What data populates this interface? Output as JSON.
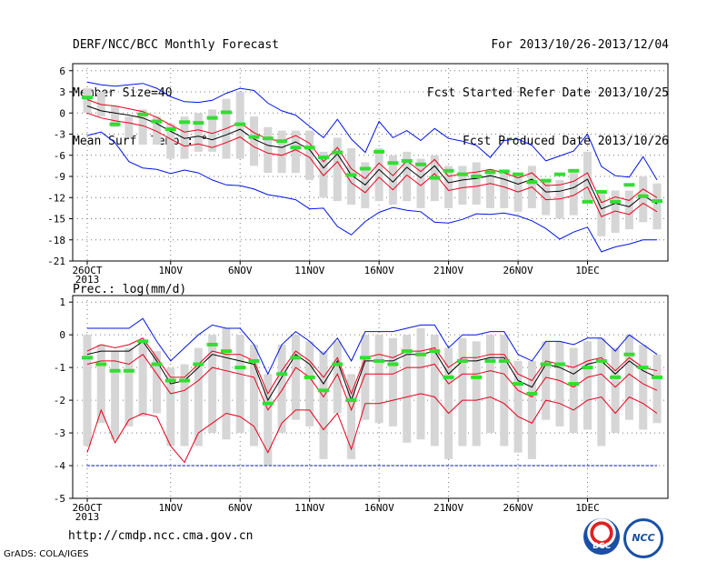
{
  "header": {
    "left": [
      "DERF/NCC/BCC Monthly Forecast",
      "Member Size=40",
      "Mean Surf. Temp.: °C"
    ],
    "right": [
      "For 2013/10/26-2013/12/04",
      "Fcst Started Refer Date 2013/10/25",
      "Fcst Produced Date 2013/10/26"
    ]
  },
  "footer": {
    "url": "http://cmdp.ncc.cma.gov.cn",
    "grads": "GrADS: COLA/IGES"
  },
  "logos": {
    "bcc": "BCC",
    "ncc": "NCC"
  },
  "colors": {
    "bar": "#d6d6d6",
    "mean": "#000000",
    "spread": "#e8001c",
    "envelope": "#0014e6",
    "marker": "#33dd33",
    "grid": "#777777"
  },
  "chart_data": [
    {
      "type": "line",
      "title": "Mean Surf. Temp.: °C",
      "x_tick_labels": [
        "26OCT",
        "1NOV",
        "6NOV",
        "11NOV",
        "16NOV",
        "21NOV",
        "26NOV",
        "1DEC"
      ],
      "x_tick_index": [
        0,
        6,
        11,
        16,
        21,
        26,
        31,
        36
      ],
      "year_label": "2013",
      "ylim": [
        -21,
        7
      ],
      "yticks": [
        6,
        3,
        0,
        -3,
        -6,
        -9,
        -12,
        -15,
        -18,
        -21
      ],
      "grid": true,
      "series": [
        {
          "role": "ensemble-mean",
          "values": [
            1.0,
            0.3,
            0.0,
            -0.3,
            -0.7,
            -1.5,
            -2.6,
            -3.6,
            -3.3,
            -3.8,
            -3.1,
            -2.3,
            -3.7,
            -4.6,
            -4.9,
            -4.1,
            -5.2,
            -7.8,
            -5.8,
            -8.8,
            -10.2,
            -8.0,
            -9.8,
            -7.7,
            -9.2,
            -7.5,
            -9.9,
            -9.5,
            -9.3,
            -8.9,
            -9.4,
            -10.1,
            -9.4,
            -11.2,
            -11.1,
            -10.6,
            -9.4,
            -13.6,
            -12.8,
            -13.3,
            -11.7,
            -12.9
          ]
        },
        {
          "role": "upper-spread",
          "values": [
            1.9,
            1.2,
            1.0,
            0.6,
            0.2,
            -0.6,
            -1.7,
            -2.7,
            -2.4,
            -2.9,
            -2.2,
            -1.4,
            -2.8,
            -3.7,
            -4.0,
            -3.2,
            -4.3,
            -6.9,
            -4.9,
            -7.9,
            -9.3,
            -7.1,
            -8.9,
            -6.8,
            -8.3,
            -6.6,
            -9.0,
            -8.6,
            -8.4,
            -8.0,
            -8.5,
            -9.2,
            -8.5,
            -10.3,
            -10.2,
            -9.7,
            -8.5,
            -12.7,
            -11.9,
            -12.4,
            -10.8,
            -12.0
          ]
        },
        {
          "role": "lower-spread",
          "values": [
            0.0,
            -0.7,
            -1.1,
            -1.4,
            -1.8,
            -2.6,
            -3.7,
            -4.7,
            -4.4,
            -4.9,
            -4.2,
            -3.4,
            -4.8,
            -5.7,
            -6.0,
            -5.2,
            -6.3,
            -8.9,
            -6.9,
            -9.9,
            -11.3,
            -9.1,
            -10.9,
            -8.8,
            -10.3,
            -8.6,
            -11.0,
            -10.6,
            -10.4,
            -10.0,
            -10.5,
            -11.2,
            -10.5,
            -12.3,
            -12.2,
            -11.7,
            -10.5,
            -14.7,
            -13.9,
            -14.4,
            -12.8,
            -14.0
          ]
        },
        {
          "role": "max-envelope",
          "values": [
            4.4,
            4.0,
            3.8,
            4.0,
            4.2,
            3.5,
            2.3,
            1.6,
            1.5,
            1.8,
            2.8,
            3.5,
            3.2,
            1.4,
            0.3,
            -0.3,
            -1.9,
            -3.5,
            -0.9,
            -3.7,
            -5.6,
            -1.2,
            -3.5,
            -2.5,
            -3.9,
            -2.2,
            -3.6,
            -4.0,
            -4.6,
            -6.3,
            -3.9,
            -3.7,
            -4.6,
            -6.8,
            -6.1,
            -5.4,
            -3.0,
            -7.6,
            -8.9,
            -9.1,
            -6.2,
            -9.5
          ]
        },
        {
          "role": "min-envelope",
          "values": [
            -3.2,
            -2.7,
            -4.2,
            -6.9,
            -7.8,
            -8.0,
            -8.6,
            -8.1,
            -8.5,
            -9.5,
            -10.2,
            -10.3,
            -10.8,
            -11.6,
            -11.9,
            -12.3,
            -13.6,
            -13.5,
            -16.1,
            -17.3,
            -15.4,
            -14.1,
            -13.4,
            -13.8,
            -14.0,
            -15.5,
            -15.6,
            -15.1,
            -14.3,
            -14.4,
            -14.2,
            -14.6,
            -15.3,
            -16.4,
            -17.9,
            -16.9,
            -16.2,
            -19.7,
            -19.0,
            -18.6,
            -18.0,
            -18.0
          ]
        }
      ],
      "markers": [
        2.2,
        null,
        -1.6,
        null,
        -0.2,
        -1.2,
        -2.3,
        -1.3,
        -1.4,
        -0.7,
        0.1,
        -1.6,
        -3.4,
        -3.6,
        -4.0,
        -4.9,
        -4.9,
        -6.3,
        -5.6,
        -8.8,
        -7.9,
        -5.5,
        -7.1,
        -6.8,
        -7.3,
        -9.2,
        -8.2,
        -8.7,
        -9.0,
        -8.4,
        -8.3,
        -8.7,
        -9.8,
        -9.6,
        -8.7,
        -8.2,
        -12.6,
        -11.2,
        -12.6,
        -10.2,
        -11.8,
        -12.5
      ],
      "bars": [
        [
          0.0,
          3.5
        ],
        [
          -0.5,
          3.0
        ],
        [
          -2.0,
          1.0
        ],
        [
          -3.5,
          -0.5
        ],
        [
          -4.5,
          0.5
        ],
        [
          -4.5,
          -0.5
        ],
        [
          -6.5,
          -1.5
        ],
        [
          -6.5,
          -0.5
        ],
        [
          -5.5,
          0.0
        ],
        [
          -5.5,
          0.5
        ],
        [
          -6.5,
          2.0
        ],
        [
          -6.5,
          3.0
        ],
        [
          -7.5,
          -0.5
        ],
        [
          -8.5,
          -2.0
        ],
        [
          -8.5,
          -2.5
        ],
        [
          -8.5,
          -2.5
        ],
        [
          -9.5,
          -2.5
        ],
        [
          -12.0,
          -5.5
        ],
        [
          -12.5,
          -3.5
        ],
        [
          -13.0,
          -5.0
        ],
        [
          -13.5,
          -7.0
        ],
        [
          -12.5,
          -5.0
        ],
        [
          -13.0,
          -6.0
        ],
        [
          -12.5,
          -5.5
        ],
        [
          -13.5,
          -6.5
        ],
        [
          -12.5,
          -6.0
        ],
        [
          -13.5,
          -7.5
        ],
        [
          -13.0,
          -7.5
        ],
        [
          -13.0,
          -7.0
        ],
        [
          -13.5,
          -8.0
        ],
        [
          -13.5,
          -8.0
        ],
        [
          -14.0,
          -8.5
        ],
        [
          -13.5,
          -7.5
        ],
        [
          -14.5,
          -9.5
        ],
        [
          -15.0,
          -9.5
        ],
        [
          -14.5,
          -8.5
        ],
        [
          -12.5,
          -5.5
        ],
        [
          -17.5,
          -11.5
        ],
        [
          -17.0,
          -11.0
        ],
        [
          -16.5,
          -11.0
        ],
        [
          -15.5,
          -9.0
        ],
        [
          -16.5,
          -10.0
        ]
      ]
    },
    {
      "type": "line",
      "title": "Prec.: log(mm/d)",
      "x_tick_labels": [
        "26OCT",
        "1NOV",
        "6NOV",
        "11NOV",
        "16NOV",
        "21NOV",
        "26NOV",
        "1DEC"
      ],
      "x_tick_index": [
        0,
        6,
        11,
        16,
        21,
        26,
        31,
        36
      ],
      "year_label": "2013",
      "ylim": [
        -5,
        1.2
      ],
      "yticks": [
        1,
        0,
        -1,
        -2,
        -3,
        -4,
        -5
      ],
      "grid": true,
      "series": [
        {
          "role": "ensemble-mean",
          "values": [
            -0.6,
            -0.5,
            -0.5,
            -0.5,
            -0.2,
            -0.8,
            -1.5,
            -1.4,
            -1.0,
            -0.6,
            -0.7,
            -0.8,
            -0.9,
            -2.0,
            -1.3,
            -0.6,
            -0.9,
            -1.5,
            -0.8,
            -2.0,
            -0.8,
            -0.8,
            -0.8,
            -0.6,
            -0.6,
            -0.5,
            -1.2,
            -0.8,
            -0.8,
            -0.7,
            -0.7,
            -1.4,
            -1.6,
            -0.9,
            -1.0,
            -1.2,
            -0.9,
            -0.8,
            -1.2,
            -0.8,
            -1.1,
            -1.3
          ]
        },
        {
          "role": "upper-spread",
          "values": [
            -0.5,
            -0.3,
            -0.4,
            -0.3,
            -0.1,
            -0.7,
            -1.3,
            -1.3,
            -0.9,
            -0.5,
            -0.6,
            -0.6,
            -0.8,
            -1.8,
            -1.1,
            -0.5,
            -0.8,
            -1.3,
            -0.7,
            -1.8,
            -0.7,
            -0.6,
            -0.7,
            -0.5,
            -0.5,
            -0.4,
            -1.0,
            -0.7,
            -0.7,
            -0.6,
            -0.6,
            -1.2,
            -1.4,
            -0.8,
            -0.9,
            -1.0,
            -0.8,
            -0.7,
            -1.1,
            -0.7,
            -1.0,
            -1.1
          ]
        },
        {
          "role": "lower-spread",
          "values": [
            -0.9,
            -0.8,
            -0.8,
            -0.9,
            -0.6,
            -1.2,
            -1.8,
            -1.7,
            -1.4,
            -1.0,
            -1.1,
            -1.2,
            -1.3,
            -2.3,
            -1.7,
            -1.0,
            -1.3,
            -1.9,
            -1.2,
            -2.3,
            -1.2,
            -1.2,
            -1.2,
            -1.0,
            -1.0,
            -0.9,
            -1.5,
            -1.2,
            -1.2,
            -1.1,
            -1.2,
            -1.7,
            -1.9,
            -1.3,
            -1.4,
            -1.6,
            -1.3,
            -1.2,
            -1.6,
            -1.2,
            -1.5,
            -1.7
          ]
        },
        {
          "role": "lower-band",
          "values": [
            -3.6,
            -2.3,
            -3.3,
            -2.6,
            -2.4,
            -2.5,
            -3.4,
            -3.9,
            -3.0,
            -2.7,
            -2.4,
            -2.5,
            -2.8,
            -3.6,
            -2.7,
            -2.3,
            -2.3,
            -2.9,
            -2.4,
            -3.5,
            -2.1,
            -2.1,
            -2.0,
            -1.9,
            -1.8,
            -1.9,
            -2.4,
            -2.0,
            -2.0,
            -1.9,
            -2.1,
            -2.5,
            -2.7,
            -2.0,
            -2.1,
            -2.3,
            -2.0,
            -1.9,
            -2.4,
            -1.9,
            -2.1,
            -2.4
          ]
        },
        {
          "role": "max-envelope",
          "values": [
            0.2,
            0.2,
            0.2,
            0.2,
            0.5,
            -0.2,
            -0.8,
            -0.4,
            0.0,
            0.3,
            0.2,
            0.2,
            -0.3,
            -1.2,
            -0.3,
            0.1,
            -0.2,
            -0.6,
            -0.1,
            -0.8,
            0.1,
            0.1,
            0.1,
            0.2,
            0.3,
            0.3,
            -0.4,
            0.0,
            0.0,
            0.1,
            0.1,
            -0.6,
            -0.8,
            -0.2,
            -0.2,
            -0.3,
            -0.1,
            -0.1,
            -0.5,
            0.0,
            -0.3,
            -0.6
          ]
        },
        {
          "role": "min-envelope",
          "values": [
            -4.0,
            -4.0,
            -4.0,
            -4.0,
            -4.0,
            -4.0,
            -4.0,
            -4.0,
            -4.0,
            -4.0,
            -4.0,
            -4.0,
            -4.0,
            -4.0,
            -4.0,
            -4.0,
            -4.0,
            -4.0,
            -4.0,
            -4.0,
            -4.0,
            -4.0,
            -4.0,
            -4.0,
            -4.0,
            -4.0,
            -4.0,
            -4.0,
            -4.0,
            -4.0,
            -4.0,
            -4.0,
            -4.0,
            -4.0,
            -4.0,
            -4.0,
            -4.0,
            -4.0,
            -4.0,
            -4.0,
            -4.0,
            -4.0
          ]
        }
      ],
      "markers": [
        -0.7,
        -0.9,
        -1.1,
        -1.1,
        -0.2,
        -0.9,
        -1.4,
        -1.4,
        -0.9,
        -0.3,
        -0.5,
        -1.0,
        -0.8,
        -2.1,
        -1.2,
        -0.7,
        -1.3,
        -1.7,
        -0.9,
        -2.0,
        -0.7,
        -0.8,
        -0.9,
        -0.5,
        -0.6,
        -0.5,
        -1.3,
        -0.8,
        -1.3,
        -0.8,
        -0.8,
        -1.5,
        -1.8,
        -0.9,
        -0.9,
        -1.5,
        -1.0,
        -0.8,
        -1.3,
        -0.6,
        -1.0,
        -1.3
      ],
      "bars": [
        [
          -3.4,
          0.0
        ],
        [
          -2.7,
          -0.3
        ],
        [
          -3.2,
          -0.5
        ],
        [
          -2.8,
          -0.4
        ],
        [
          -2.5,
          -0.2
        ],
        [
          -2.4,
          -0.5
        ],
        [
          -3.4,
          -1.0
        ],
        [
          -3.4,
          -0.9
        ],
        [
          -3.4,
          -0.4
        ],
        [
          -3.0,
          0.0
        ],
        [
          -3.2,
          0.2
        ],
        [
          -3.0,
          0.0
        ],
        [
          -3.4,
          -0.3
        ],
        [
          -4.0,
          -1.2
        ],
        [
          -3.0,
          -0.3
        ],
        [
          -2.6,
          0.0
        ],
        [
          -2.8,
          -0.2
        ],
        [
          -3.8,
          -0.5
        ],
        [
          -2.4,
          -0.2
        ],
        [
          -3.8,
          -1.2
        ],
        [
          -2.6,
          0.0
        ],
        [
          -2.7,
          0.0
        ],
        [
          -2.8,
          -0.1
        ],
        [
          -3.3,
          0.0
        ],
        [
          -3.2,
          0.2
        ],
        [
          -3.4,
          0.0
        ],
        [
          -3.8,
          -0.4
        ],
        [
          -3.4,
          -0.1
        ],
        [
          -3.4,
          -0.2
        ],
        [
          -3.0,
          0.0
        ],
        [
          -3.4,
          0.0
        ],
        [
          -3.6,
          -0.8
        ],
        [
          -3.8,
          -0.8
        ],
        [
          -2.6,
          -0.2
        ],
        [
          -2.8,
          -0.2
        ],
        [
          -3.0,
          -0.4
        ],
        [
          -2.9,
          -0.2
        ],
        [
          -3.4,
          -0.1
        ],
        [
          -3.0,
          -0.4
        ],
        [
          -2.6,
          0.0
        ],
        [
          -2.9,
          -0.3
        ],
        [
          -2.7,
          -0.6
        ]
      ]
    }
  ]
}
